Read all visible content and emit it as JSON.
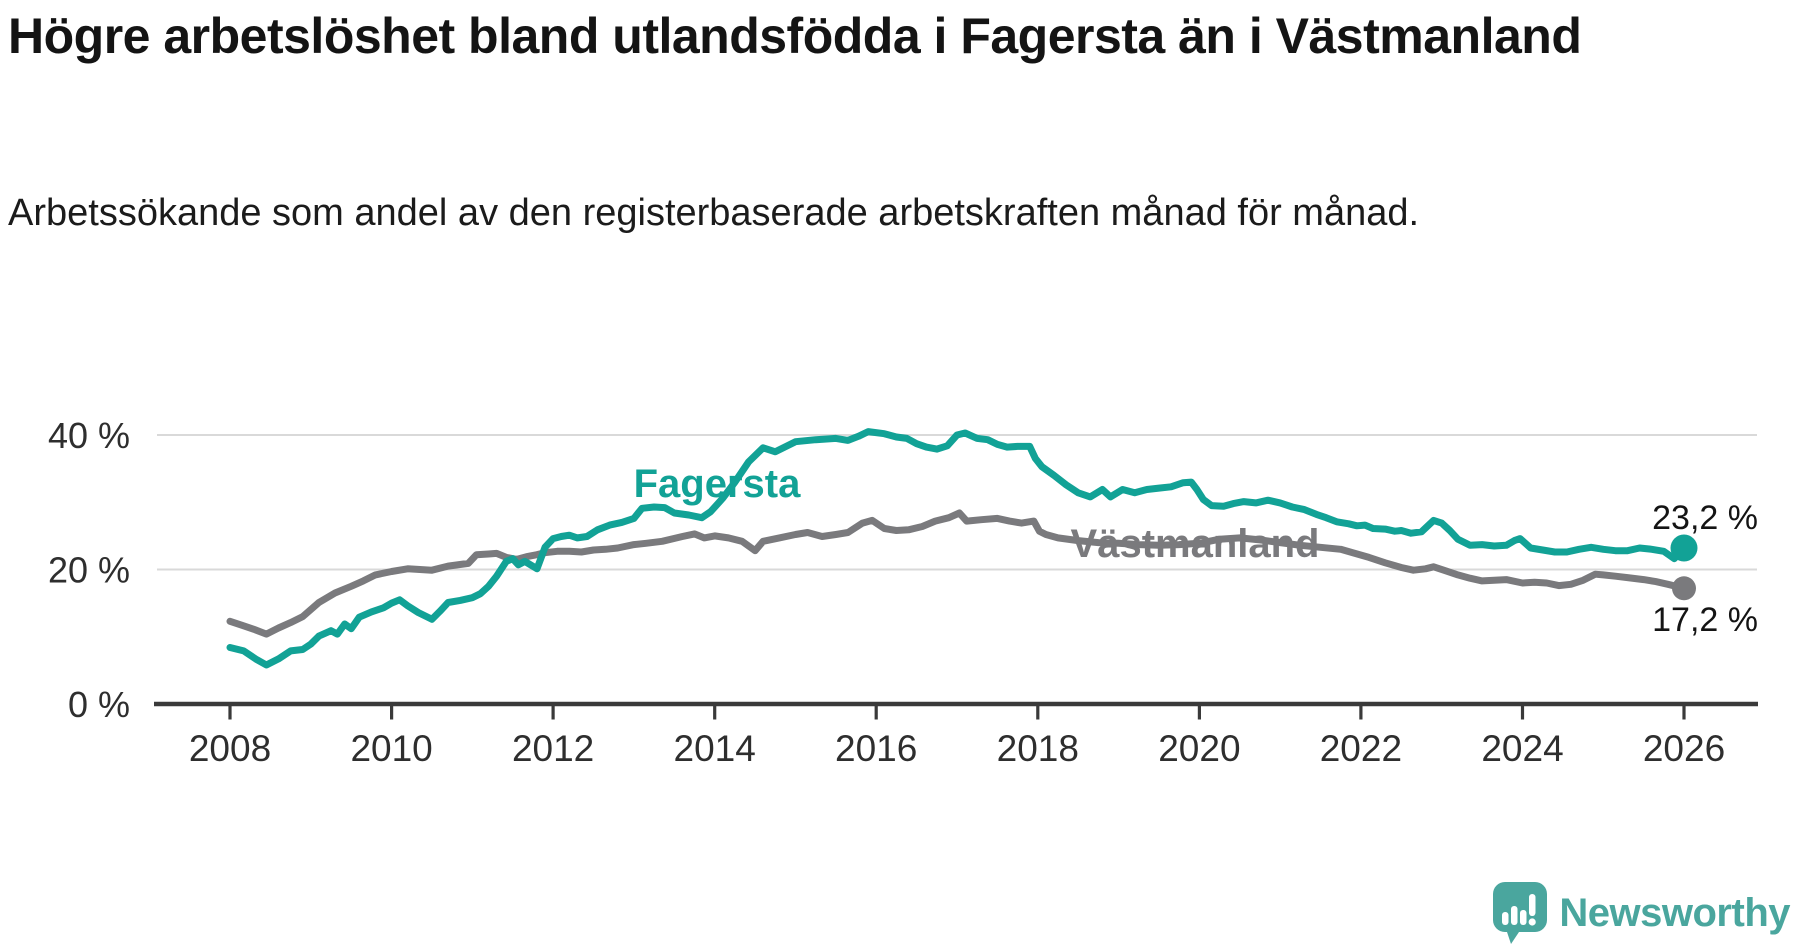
{
  "chart_data": {
    "type": "line",
    "title": "Högre arbetslöshet bland utlandsfödda i Fagersta än i Västmanland",
    "subtitle": "Arbetssökande som andel av den registerbaserade arbetskraften månad för månad.",
    "unit": "percent",
    "xlabel": "",
    "ylabel": "",
    "x_range": [
      2008,
      2026.07
    ],
    "ylim": [
      0,
      42
    ],
    "grid": "horizontal-only",
    "legend_position": "inline-labels",
    "grid_y": [
      20,
      40
    ],
    "y_ticks": [
      {
        "value": 0,
        "label": "0 %"
      },
      {
        "value": 20,
        "label": "20 %"
      },
      {
        "value": 40,
        "label": "40 %"
      }
    ],
    "x_ticks": [
      {
        "value": 2008,
        "label": "2008"
      },
      {
        "value": 2010,
        "label": "2010"
      },
      {
        "value": 2012,
        "label": "2012"
      },
      {
        "value": 2014,
        "label": "2014"
      },
      {
        "value": 2016,
        "label": "2016"
      },
      {
        "value": 2018,
        "label": "2018"
      },
      {
        "value": 2020,
        "label": "2020"
      },
      {
        "value": 2022,
        "label": "2022"
      },
      {
        "value": 2024,
        "label": "2024"
      },
      {
        "value": 2026,
        "label": "2026"
      }
    ],
    "series": [
      {
        "name": "Fagersta",
        "color": "#12a296",
        "end_label": "23,2 %",
        "end_value": 23.2,
        "points": [
          [
            2008.0,
            8.4
          ],
          [
            2008.17,
            7.9
          ],
          [
            2008.33,
            6.6
          ],
          [
            2008.45,
            5.8
          ],
          [
            2008.6,
            6.7
          ],
          [
            2008.75,
            7.9
          ],
          [
            2008.9,
            8.1
          ],
          [
            2009.0,
            8.9
          ],
          [
            2009.1,
            10.1
          ],
          [
            2009.25,
            10.9
          ],
          [
            2009.33,
            10.4
          ],
          [
            2009.42,
            11.9
          ],
          [
            2009.5,
            11.2
          ],
          [
            2009.6,
            12.9
          ],
          [
            2009.75,
            13.7
          ],
          [
            2009.9,
            14.3
          ],
          [
            2010.0,
            15.0
          ],
          [
            2010.1,
            15.5
          ],
          [
            2010.2,
            14.6
          ],
          [
            2010.33,
            13.6
          ],
          [
            2010.5,
            12.6
          ],
          [
            2010.6,
            13.8
          ],
          [
            2010.7,
            15.1
          ],
          [
            2010.85,
            15.4
          ],
          [
            2011.0,
            15.8
          ],
          [
            2011.1,
            16.4
          ],
          [
            2011.2,
            17.5
          ],
          [
            2011.3,
            19.0
          ],
          [
            2011.42,
            21.2
          ],
          [
            2011.5,
            21.6
          ],
          [
            2011.57,
            20.7
          ],
          [
            2011.65,
            21.2
          ],
          [
            2011.8,
            20.1
          ],
          [
            2011.9,
            23.3
          ],
          [
            2012.0,
            24.6
          ],
          [
            2012.1,
            24.9
          ],
          [
            2012.2,
            25.1
          ],
          [
            2012.3,
            24.7
          ],
          [
            2012.42,
            24.9
          ],
          [
            2012.55,
            25.9
          ],
          [
            2012.7,
            26.6
          ],
          [
            2012.85,
            27.0
          ],
          [
            2013.0,
            27.6
          ],
          [
            2013.1,
            29.1
          ],
          [
            2013.25,
            29.3
          ],
          [
            2013.38,
            29.2
          ],
          [
            2013.5,
            28.4
          ],
          [
            2013.68,
            28.1
          ],
          [
            2013.84,
            27.7
          ],
          [
            2013.95,
            28.6
          ],
          [
            2014.1,
            30.6
          ],
          [
            2014.25,
            33.0
          ],
          [
            2014.42,
            36.0
          ],
          [
            2014.6,
            38.1
          ],
          [
            2014.75,
            37.5
          ],
          [
            2014.9,
            38.4
          ],
          [
            2015.0,
            39.0
          ],
          [
            2015.25,
            39.3
          ],
          [
            2015.5,
            39.5
          ],
          [
            2015.65,
            39.2
          ],
          [
            2015.78,
            39.8
          ],
          [
            2015.9,
            40.5
          ],
          [
            2016.1,
            40.2
          ],
          [
            2016.25,
            39.7
          ],
          [
            2016.38,
            39.5
          ],
          [
            2016.5,
            38.7
          ],
          [
            2016.62,
            38.2
          ],
          [
            2016.75,
            37.9
          ],
          [
            2016.88,
            38.4
          ],
          [
            2017.0,
            40.0
          ],
          [
            2017.1,
            40.3
          ],
          [
            2017.25,
            39.5
          ],
          [
            2017.38,
            39.3
          ],
          [
            2017.5,
            38.6
          ],
          [
            2017.62,
            38.2
          ],
          [
            2017.75,
            38.3
          ],
          [
            2017.9,
            38.3
          ],
          [
            2017.97,
            36.5
          ],
          [
            2018.05,
            35.3
          ],
          [
            2018.2,
            34.0
          ],
          [
            2018.35,
            32.6
          ],
          [
            2018.5,
            31.4
          ],
          [
            2018.65,
            30.8
          ],
          [
            2018.8,
            31.9
          ],
          [
            2018.9,
            30.8
          ],
          [
            2019.05,
            31.9
          ],
          [
            2019.2,
            31.4
          ],
          [
            2019.35,
            31.9
          ],
          [
            2019.5,
            32.1
          ],
          [
            2019.65,
            32.3
          ],
          [
            2019.8,
            32.9
          ],
          [
            2019.9,
            33.0
          ],
          [
            2019.97,
            31.9
          ],
          [
            2020.05,
            30.4
          ],
          [
            2020.15,
            29.5
          ],
          [
            2020.3,
            29.4
          ],
          [
            2020.42,
            29.8
          ],
          [
            2020.55,
            30.1
          ],
          [
            2020.7,
            29.9
          ],
          [
            2020.85,
            30.3
          ],
          [
            2021.0,
            29.9
          ],
          [
            2021.15,
            29.3
          ],
          [
            2021.3,
            28.9
          ],
          [
            2021.45,
            28.2
          ],
          [
            2021.57,
            27.7
          ],
          [
            2021.7,
            27.1
          ],
          [
            2021.85,
            26.8
          ],
          [
            2021.95,
            26.5
          ],
          [
            2022.05,
            26.6
          ],
          [
            2022.15,
            26.1
          ],
          [
            2022.3,
            26.0
          ],
          [
            2022.42,
            25.7
          ],
          [
            2022.5,
            25.8
          ],
          [
            2022.62,
            25.4
          ],
          [
            2022.75,
            25.6
          ],
          [
            2022.9,
            27.3
          ],
          [
            2023.0,
            26.9
          ],
          [
            2023.1,
            25.8
          ],
          [
            2023.2,
            24.5
          ],
          [
            2023.35,
            23.6
          ],
          [
            2023.5,
            23.7
          ],
          [
            2023.65,
            23.5
          ],
          [
            2023.8,
            23.6
          ],
          [
            2023.9,
            24.3
          ],
          [
            2023.97,
            24.6
          ],
          [
            2024.1,
            23.2
          ],
          [
            2024.25,
            22.9
          ],
          [
            2024.4,
            22.6
          ],
          [
            2024.55,
            22.6
          ],
          [
            2024.7,
            23.0
          ],
          [
            2024.85,
            23.3
          ],
          [
            2025.0,
            23.0
          ],
          [
            2025.15,
            22.8
          ],
          [
            2025.3,
            22.8
          ],
          [
            2025.45,
            23.2
          ],
          [
            2025.6,
            23.0
          ],
          [
            2025.75,
            22.7
          ],
          [
            2025.88,
            21.6
          ],
          [
            2026.0,
            23.2
          ]
        ]
      },
      {
        "name": "Västmanland",
        "color": "#7a7a7d",
        "end_label": "17,2 %",
        "end_value": 17.2,
        "points": [
          [
            2008.0,
            12.3
          ],
          [
            2008.15,
            11.7
          ],
          [
            2008.3,
            11.1
          ],
          [
            2008.45,
            10.4
          ],
          [
            2008.6,
            11.3
          ],
          [
            2008.75,
            12.1
          ],
          [
            2008.9,
            13.0
          ],
          [
            2009.1,
            15.1
          ],
          [
            2009.3,
            16.5
          ],
          [
            2009.5,
            17.5
          ],
          [
            2009.65,
            18.3
          ],
          [
            2009.8,
            19.2
          ],
          [
            2010.0,
            19.7
          ],
          [
            2010.2,
            20.1
          ],
          [
            2010.35,
            20.0
          ],
          [
            2010.5,
            19.9
          ],
          [
            2010.7,
            20.5
          ],
          [
            2010.95,
            20.9
          ],
          [
            2011.05,
            22.2
          ],
          [
            2011.2,
            22.3
          ],
          [
            2011.3,
            22.4
          ],
          [
            2011.42,
            21.8
          ],
          [
            2011.55,
            21.5
          ],
          [
            2011.67,
            21.9
          ],
          [
            2011.8,
            22.2
          ],
          [
            2011.9,
            22.5
          ],
          [
            2012.05,
            22.7
          ],
          [
            2012.2,
            22.7
          ],
          [
            2012.35,
            22.6
          ],
          [
            2012.5,
            22.9
          ],
          [
            2012.65,
            23.0
          ],
          [
            2012.8,
            23.2
          ],
          [
            2013.0,
            23.7
          ],
          [
            2013.15,
            23.9
          ],
          [
            2013.35,
            24.2
          ],
          [
            2013.6,
            24.9
          ],
          [
            2013.75,
            25.3
          ],
          [
            2013.87,
            24.7
          ],
          [
            2014.0,
            25.0
          ],
          [
            2014.17,
            24.7
          ],
          [
            2014.34,
            24.2
          ],
          [
            2014.5,
            22.8
          ],
          [
            2014.6,
            24.2
          ],
          [
            2014.8,
            24.7
          ],
          [
            2015.0,
            25.2
          ],
          [
            2015.15,
            25.5
          ],
          [
            2015.33,
            24.9
          ],
          [
            2015.5,
            25.2
          ],
          [
            2015.65,
            25.5
          ],
          [
            2015.83,
            26.9
          ],
          [
            2015.95,
            27.3
          ],
          [
            2016.1,
            26.1
          ],
          [
            2016.25,
            25.8
          ],
          [
            2016.4,
            25.9
          ],
          [
            2016.57,
            26.4
          ],
          [
            2016.73,
            27.2
          ],
          [
            2016.9,
            27.7
          ],
          [
            2017.03,
            28.4
          ],
          [
            2017.12,
            27.2
          ],
          [
            2017.3,
            27.4
          ],
          [
            2017.5,
            27.6
          ],
          [
            2017.65,
            27.2
          ],
          [
            2017.8,
            26.9
          ],
          [
            2017.95,
            27.2
          ],
          [
            2018.02,
            25.7
          ],
          [
            2018.1,
            25.2
          ],
          [
            2018.25,
            24.7
          ],
          [
            2018.5,
            24.3
          ],
          [
            2018.75,
            24.0
          ],
          [
            2019.0,
            23.9
          ],
          [
            2019.25,
            23.7
          ],
          [
            2019.5,
            23.6
          ],
          [
            2019.75,
            23.7
          ],
          [
            2020.0,
            23.9
          ],
          [
            2020.25,
            24.5
          ],
          [
            2020.5,
            24.7
          ],
          [
            2020.75,
            24.4
          ],
          [
            2021.0,
            24.0
          ],
          [
            2021.25,
            23.6
          ],
          [
            2021.5,
            23.3
          ],
          [
            2021.75,
            23.0
          ],
          [
            2021.9,
            22.5
          ],
          [
            2022.1,
            21.8
          ],
          [
            2022.3,
            21.0
          ],
          [
            2022.5,
            20.3
          ],
          [
            2022.65,
            19.9
          ],
          [
            2022.8,
            20.1
          ],
          [
            2022.9,
            20.4
          ],
          [
            2023.05,
            19.8
          ],
          [
            2023.2,
            19.2
          ],
          [
            2023.35,
            18.7
          ],
          [
            2023.5,
            18.3
          ],
          [
            2023.65,
            18.4
          ],
          [
            2023.8,
            18.5
          ],
          [
            2024.0,
            18.0
          ],
          [
            2024.15,
            18.1
          ],
          [
            2024.3,
            18.0
          ],
          [
            2024.45,
            17.6
          ],
          [
            2024.6,
            17.8
          ],
          [
            2024.75,
            18.4
          ],
          [
            2024.9,
            19.3
          ],
          [
            2025.0,
            19.2
          ],
          [
            2025.15,
            19.0
          ],
          [
            2025.3,
            18.8
          ],
          [
            2025.5,
            18.5
          ],
          [
            2025.65,
            18.2
          ],
          [
            2025.8,
            17.8
          ],
          [
            2025.9,
            17.5
          ],
          [
            2026.0,
            17.2
          ]
        ]
      }
    ]
  },
  "footer": {
    "brand": "Newsworthy",
    "brand_color": "#4aa69e"
  }
}
